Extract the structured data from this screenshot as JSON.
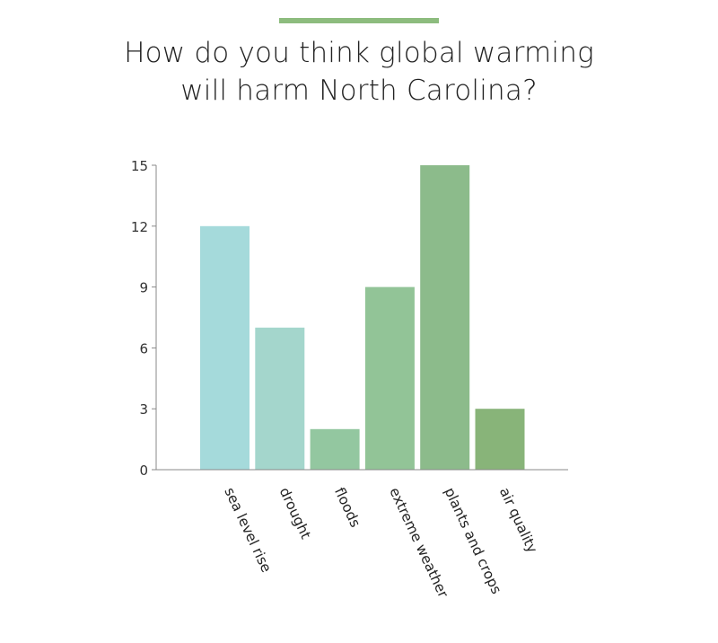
{
  "chart_data": {
    "type": "bar",
    "title_lines": [
      "How do you think global warming",
      "will harm North Carolina?"
    ],
    "categories": [
      "sea level rise",
      "drought",
      "floods",
      "extreme weather",
      "plants and crops",
      "air quality"
    ],
    "values": [
      12,
      7,
      2,
      9,
      15,
      3
    ],
    "bar_colors": [
      "#a5dadb",
      "#a4d6cc",
      "#93c7a0",
      "#92c497",
      "#8cbb8b",
      "#88b479"
    ],
    "ylim": [
      0,
      15
    ],
    "yticks": [
      0,
      3,
      6,
      9,
      12,
      15
    ],
    "grid": false,
    "legend": "none"
  },
  "colors": {
    "accent_rule": "#8dbc7e",
    "axis": "#888888"
  }
}
